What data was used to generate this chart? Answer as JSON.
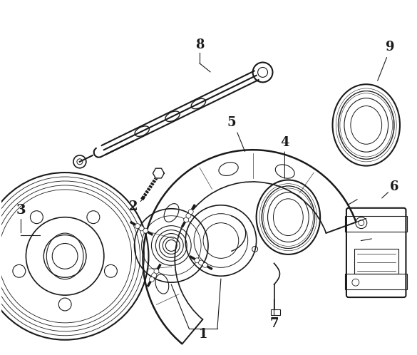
{
  "background_color": "#ffffff",
  "line_color": "#1a1a1a",
  "fig_width": 5.85,
  "fig_height": 4.98,
  "dpi": 100
}
